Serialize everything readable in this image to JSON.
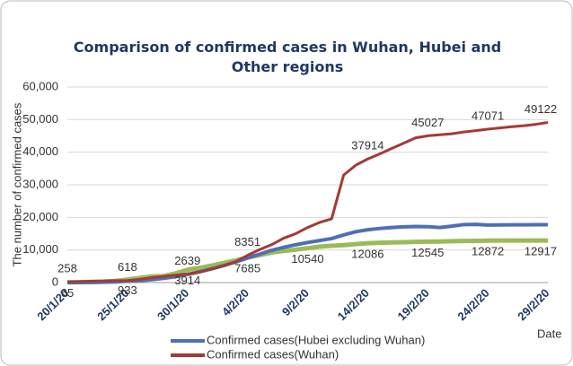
{
  "chart_data": {
    "type": "line",
    "title": "Comparison of confirmed cases in Wuhan, Hubei and Other regions",
    "y_label": "The number of confirmed cases",
    "x_label": "Date",
    "categories": [
      "20/1/20",
      null,
      null,
      null,
      null,
      "25/1/20",
      null,
      null,
      null,
      null,
      "30/1/20",
      null,
      null,
      null,
      null,
      "4/2/20",
      null,
      null,
      null,
      null,
      "9/2/20",
      null,
      null,
      null,
      null,
      "14/2/20",
      null,
      null,
      null,
      null,
      "19/2/20",
      null,
      null,
      null,
      null,
      "24/2/20",
      null,
      null,
      null,
      null,
      "29/2/20"
    ],
    "series": [
      {
        "name": "Confirmed cases(Hubei excluding Wuhan)",
        "color": "#4f6fb5",
        "values": [
          12,
          30,
          50,
          100,
          200,
          400,
          600,
          900,
          1300,
          1800,
          2500,
          3300,
          4200,
          5200,
          6300,
          7500,
          8700,
          9900,
          10800,
          11600,
          12300,
          12900,
          13500,
          14600,
          15600,
          16200,
          16600,
          16900,
          17100,
          17200,
          17150,
          16900,
          17300,
          17800,
          17850,
          17650,
          17700,
          17720,
          17730,
          17740,
          17750
        ]
      },
      {
        "name": "Confirmed cases(Wuhan)",
        "color": "#a33a36",
        "values": [
          258,
          300,
          400,
          495,
          572,
          618,
          1000,
          1500,
          1900,
          2261,
          2639,
          3215,
          4109,
          5142,
          6384,
          8351,
          10117,
          11618,
          13603,
          14982,
          16902,
          18454,
          19558,
          32994,
          35991,
          37914,
          39462,
          41152,
          42752,
          44412,
          45027,
          45346,
          45660,
          46201,
          46607,
          47071,
          47441,
          47824,
          48137,
          48557,
          49122
        ],
        "value_labels": [
          "258",
          null,
          null,
          null,
          null,
          "618",
          null,
          null,
          null,
          null,
          "2639",
          null,
          null,
          null,
          null,
          "8351",
          null,
          null,
          null,
          null,
          null,
          null,
          null,
          null,
          null,
          "37914",
          null,
          null,
          null,
          null,
          "45027",
          null,
          null,
          null,
          null,
          "47071",
          null,
          null,
          null,
          null,
          "49122"
        ]
      },
      {
        "color": "#9bbb59",
        "values": [
          65,
          100,
          200,
          300,
          500,
          933,
          1400,
          1900,
          2000,
          2800,
          3914,
          4500,
          5200,
          6000,
          6800,
          7685,
          8400,
          9200,
          9700,
          10100,
          10540,
          11000,
          11300,
          11500,
          11800,
          12086,
          12200,
          12300,
          12400,
          12480,
          12545,
          12600,
          12700,
          12750,
          12800,
          12872,
          12890,
          12900,
          12905,
          12910,
          12917
        ],
        "value_labels": [
          "65",
          null,
          null,
          null,
          null,
          "933",
          null,
          null,
          null,
          null,
          "3914",
          null,
          null,
          null,
          null,
          "7685",
          null,
          null,
          null,
          null,
          "10540",
          null,
          null,
          null,
          null,
          "12086",
          null,
          null,
          null,
          null,
          "12545",
          null,
          null,
          null,
          null,
          "12872",
          null,
          null,
          null,
          null,
          "12917"
        ]
      }
    ],
    "ylim": [
      0,
      60000
    ],
    "yticks": [
      0,
      {
        "value": 10000,
        "label": "10,000"
      },
      {
        "value": 20000,
        "label": "20,000"
      },
      {
        "value": 30000,
        "label": "30,000"
      },
      {
        "value": 40000,
        "label": "40,000"
      },
      {
        "value": 50000,
        "label": "50,000"
      },
      {
        "value": 60000,
        "label": "60,000"
      }
    ],
    "grid": true
  }
}
